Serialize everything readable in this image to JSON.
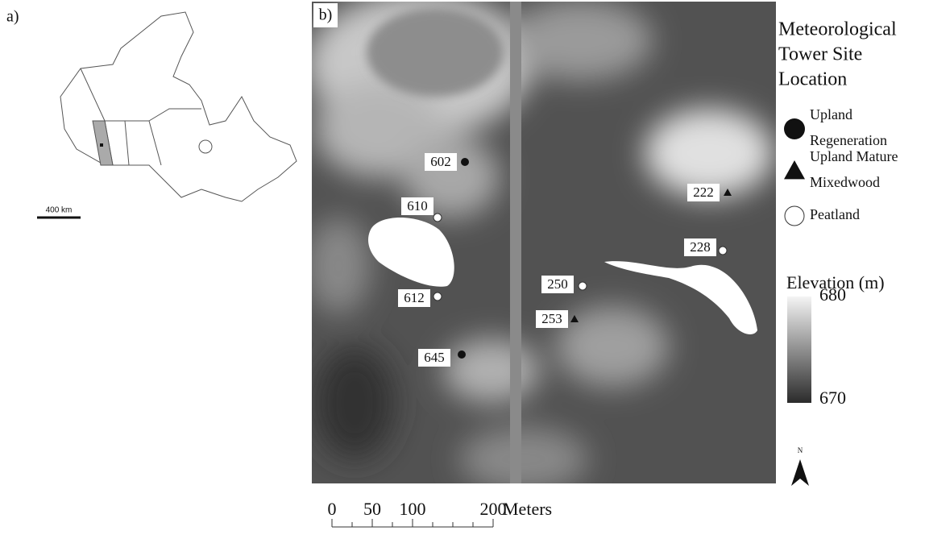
{
  "panel_a": {
    "label": "a)",
    "scale_text": "400 km"
  },
  "panel_b": {
    "label": "b)"
  },
  "legend": {
    "title": [
      "Meteorological",
      "Tower Site",
      "Location"
    ],
    "items": [
      {
        "name": [
          "Upland",
          "Regeneration"
        ],
        "sites": [
          "602",
          "645"
        ]
      },
      {
        "name": [
          "Upland Mature",
          "Mixedwood"
        ],
        "sites": [
          "222",
          "253"
        ]
      },
      {
        "name": [
          "Peatland"
        ],
        "sites": [
          "610",
          "612",
          "250",
          "228"
        ]
      }
    ]
  },
  "elevation": {
    "title": "Elevation (m)",
    "max": 680,
    "min": 670
  },
  "north": "N",
  "scale_bar": {
    "ticks": [
      0,
      50,
      100,
      200
    ],
    "unit": "Meters"
  }
}
